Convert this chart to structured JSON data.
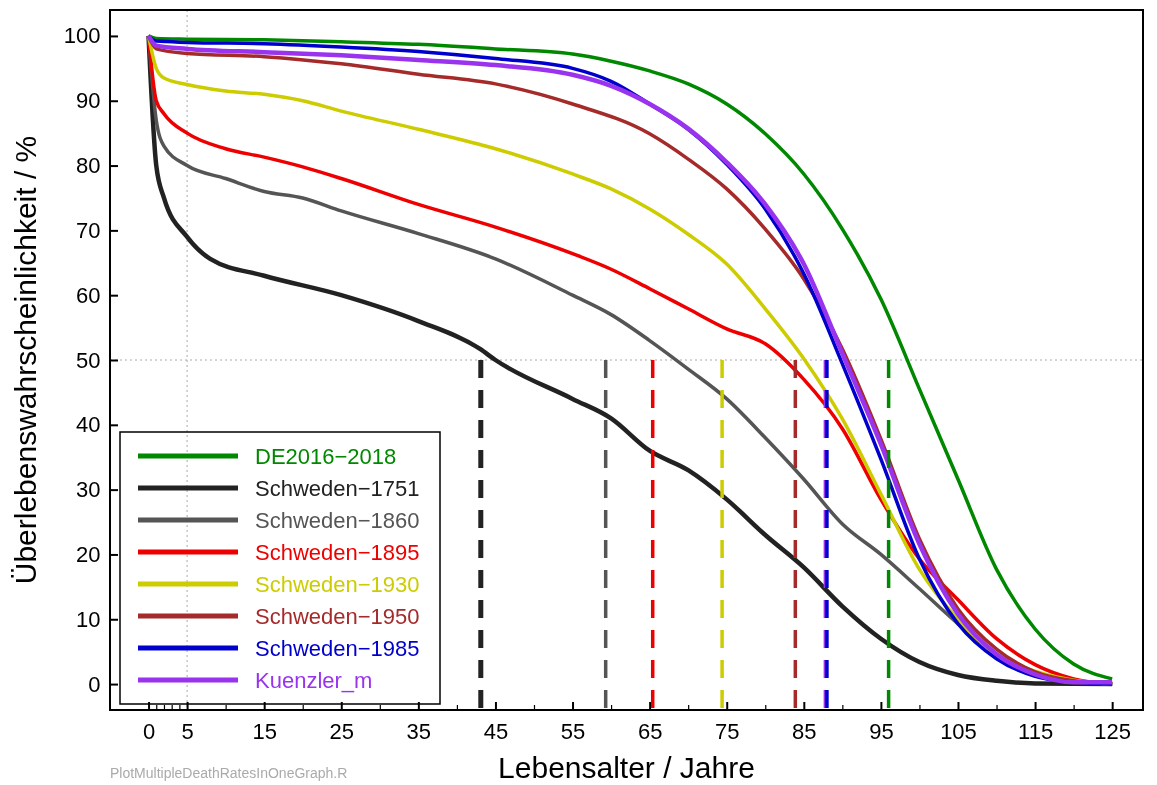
{
  "chart_data": {
    "type": "line",
    "xlabel": "Lebensalter / Jahre",
    "ylabel": "Überlebenswahrscheinlichkeit / %",
    "xlim": [
      -5,
      129
    ],
    "ylim": [
      -4,
      104
    ],
    "xticks": [
      0,
      {
        "value": 1,
        "label": null
      },
      {
        "value": 2,
        "label": null
      },
      {
        "value": 3,
        "label": null
      },
      {
        "value": 4,
        "label": null
      },
      5,
      {
        "value": 10,
        "label": null
      },
      15,
      {
        "value": 20,
        "label": null
      },
      25,
      {
        "value": 30,
        "label": null
      },
      35,
      {
        "value": 40,
        "label": null
      },
      45,
      {
        "value": 50,
        "label": null
      },
      55,
      {
        "value": 60,
        "label": null
      },
      65,
      {
        "value": 70,
        "label": null
      },
      75,
      {
        "value": 80,
        "label": null
      },
      85,
      {
        "value": 90,
        "label": null
      },
      95,
      {
        "value": 100,
        "label": null
      },
      105,
      {
        "value": 110,
        "label": null
      },
      115,
      {
        "value": 120,
        "label": null
      },
      125
    ],
    "yticks": [
      0,
      10,
      20,
      30,
      40,
      50,
      60,
      70,
      80,
      90,
      100
    ],
    "grid": false,
    "legend": "bottom left",
    "line_style": "solid",
    "marker": "none",
    "ref_lines": [
      {
        "axis": "x",
        "value": 5,
        "color": "#aaaaaa",
        "line_style": "dotted"
      },
      {
        "axis": "y",
        "value": 50,
        "color": "#aaaaaa",
        "line_style": "dotted"
      }
    ],
    "annotations": [
      "PlotMultipleDeathRatesInOneGraph.R"
    ],
    "series": [
      {
        "name": "DE2016−2018",
        "color": "#008800",
        "x": [
          0,
          1,
          5,
          15,
          25,
          35,
          45,
          55,
          60,
          65,
          70,
          75,
          80,
          85,
          90,
          95,
          100,
          105,
          110,
          115,
          120,
          125
        ],
        "values": [
          100,
          99.6,
          99.5,
          99.4,
          99.1,
          98.7,
          98,
          97.2,
          96.1,
          94.6,
          92.6,
          89.5,
          84.9,
          78.7,
          70.2,
          59.4,
          45.5,
          31.6,
          17.7,
          8.5,
          3.1,
          0.8
        ]
      },
      {
        "name": "Schweden−1751",
        "color": "#222222",
        "x": [
          0,
          1,
          2,
          5,
          8,
          15,
          25,
          35,
          43,
          45,
          55,
          60,
          65,
          70,
          75,
          80,
          85,
          90,
          95,
          100,
          105,
          110,
          115,
          125
        ],
        "values": [
          100,
          80,
          75,
          69,
          65.6,
          63,
          60,
          56,
          51.7,
          50,
          44,
          41,
          36,
          33,
          28.5,
          23,
          18,
          12,
          7,
          3.4,
          1.4,
          0.5,
          0.1,
          0
        ]
      },
      {
        "name": "Schweden−1860",
        "color": "#555555",
        "x": [
          0,
          1,
          2,
          5,
          10,
          15,
          20,
          25,
          35,
          45,
          55,
          60,
          65,
          70,
          75,
          80,
          85,
          90,
          95,
          100,
          105,
          110,
          115,
          120,
          125
        ],
        "values": [
          100,
          87,
          83,
          80,
          78,
          76,
          75,
          73,
          69.5,
          65.6,
          60,
          57,
          53,
          48.6,
          44,
          38,
          31.6,
          24.7,
          20,
          14.7,
          9.3,
          4.6,
          1.5,
          0.3,
          0
        ]
      },
      {
        "name": "Schweden−1895",
        "color": "#ee0000",
        "x": [
          0,
          1,
          2,
          5,
          10,
          15,
          20,
          25,
          35,
          45,
          55,
          60,
          65,
          70,
          75,
          80,
          85,
          90,
          95,
          100,
          105,
          110,
          115,
          120,
          125
        ],
        "values": [
          100,
          90,
          88,
          85,
          82.6,
          81.3,
          79.8,
          78,
          74,
          70.5,
          66.4,
          64,
          61,
          57.9,
          54.8,
          52.5,
          47,
          39.4,
          28.5,
          19.3,
          13,
          7,
          3,
          0.8,
          0
        ]
      },
      {
        "name": "Schweden−1930",
        "color": "#cccc00",
        "x": [
          0,
          1,
          2,
          5,
          10,
          15,
          20,
          25,
          35,
          45,
          55,
          60,
          65,
          70,
          75,
          80,
          85,
          90,
          95,
          100,
          105,
          110,
          115,
          120,
          125
        ],
        "values": [
          100,
          95,
          93.5,
          92.5,
          91.5,
          91,
          90,
          88.4,
          85.6,
          82.6,
          78.7,
          76.4,
          73.3,
          69.4,
          64.8,
          57.9,
          50.2,
          40.9,
          29.3,
          17.7,
          10,
          4.6,
          2,
          0.6,
          0
        ]
      },
      {
        "name": "Schweden−1950",
        "color": "#a52a2a",
        "x": [
          0,
          1,
          5,
          15,
          25,
          35,
          45,
          55,
          65,
          70,
          75,
          80,
          85,
          90,
          95,
          100,
          105,
          110,
          115,
          120,
          125
        ],
        "values": [
          100,
          98,
          97.3,
          96.8,
          95.7,
          94.1,
          92.6,
          89.5,
          84.9,
          81,
          76.4,
          70.2,
          62.5,
          51.7,
          37.8,
          22.4,
          11.6,
          5.4,
          1.9,
          0.5,
          0
        ]
      },
      {
        "name": "Schweden−1985",
        "color": "#0000cc",
        "x": [
          0,
          1,
          5,
          15,
          25,
          35,
          45,
          55,
          60,
          65,
          70,
          75,
          80,
          85,
          90,
          95,
          100,
          105,
          110,
          115,
          120,
          125
        ],
        "values": [
          100,
          99.2,
          99,
          98.8,
          98.3,
          97.6,
          96.5,
          95,
          93,
          89.5,
          85.6,
          80.2,
          73.3,
          63.3,
          49.4,
          34.7,
          19.3,
          9.3,
          3.9,
          1.2,
          0.3,
          0
        ]
      },
      {
        "name": "Kuenzler_m",
        "color": "#9933ee",
        "x": [
          0,
          1,
          5,
          15,
          25,
          35,
          45,
          55,
          60,
          65,
          70,
          75,
          80,
          85,
          90,
          95,
          100,
          105,
          110,
          115,
          120,
          125
        ],
        "values": [
          100,
          98.5,
          98,
          97.5,
          97,
          96.3,
          95.5,
          94,
          92.3,
          89.5,
          85.7,
          80.5,
          74,
          64.8,
          51,
          37,
          21.6,
          10.8,
          4.6,
          1.5,
          0.3,
          0.3
        ]
      },
      {
        "color": "#222222",
        "line_style": "dashed",
        "x": [
          43.1,
          43.1
        ],
        "values": [
          50,
          -4
        ]
      },
      {
        "color": "#555555",
        "line_style": "dashed",
        "x": [
          59.3,
          59.3
        ],
        "values": [
          50,
          -4
        ]
      },
      {
        "color": "#ee0000",
        "line_style": "dashed",
        "x": [
          65.4,
          65.4
        ],
        "values": [
          50,
          -4
        ]
      },
      {
        "color": "#cccc00",
        "line_style": "dashed",
        "x": [
          74.4,
          74.4
        ],
        "values": [
          50,
          -4
        ]
      },
      {
        "color": "#a52a2a",
        "line_style": "dashed",
        "x": [
          83.9,
          83.9
        ],
        "values": [
          50,
          -4
        ]
      },
      {
        "color": "#9933ee",
        "line_style": "dashed",
        "x": [
          87.8,
          87.8
        ],
        "values": [
          50,
          -4
        ]
      },
      {
        "color": "#0000cc",
        "line_style": "dashed",
        "x": [
          88,
          88
        ],
        "values": [
          50,
          -4
        ]
      },
      {
        "color": "#008800",
        "line_style": "dashed",
        "x": [
          96,
          96
        ],
        "values": [
          50,
          -4
        ]
      }
    ]
  }
}
